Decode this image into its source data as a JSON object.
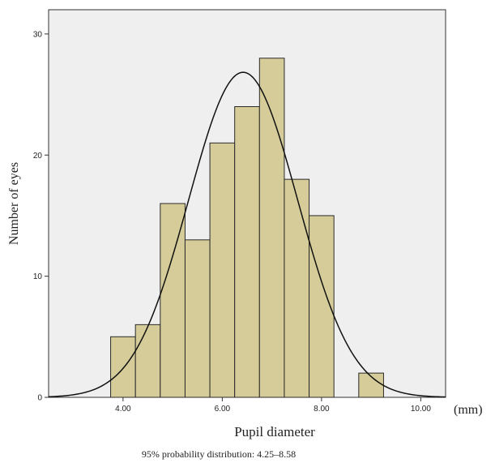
{
  "chart_data": {
    "type": "bar",
    "xlabel": "Pupil diameter",
    "x_unit": "(mm)",
    "ylabel": "Number of eyes",
    "note": "95% probability distribution: 4.25–8.58",
    "xlim": [
      2.5,
      10.5
    ],
    "ylim": [
      0,
      32
    ],
    "x_ticks": [
      4.0,
      6.0,
      8.0,
      10.0
    ],
    "x_tick_labels": [
      "4.00",
      "6.00",
      "8.00",
      "10.00"
    ],
    "y_ticks": [
      0,
      10,
      20,
      30
    ],
    "y_tick_labels": [
      "0",
      "10",
      "20",
      "30"
    ],
    "bin_width": 0.5,
    "bins": [
      {
        "start": 3.75,
        "end": 4.25,
        "count": 5
      },
      {
        "start": 4.25,
        "end": 4.75,
        "count": 6
      },
      {
        "start": 4.75,
        "end": 5.25,
        "count": 16
      },
      {
        "start": 5.25,
        "end": 5.75,
        "count": 13
      },
      {
        "start": 5.75,
        "end": 6.25,
        "count": 21
      },
      {
        "start": 6.25,
        "end": 6.75,
        "count": 24
      },
      {
        "start": 6.75,
        "end": 7.25,
        "count": 28
      },
      {
        "start": 7.25,
        "end": 7.75,
        "count": 18
      },
      {
        "start": 7.75,
        "end": 8.25,
        "count": 15
      },
      {
        "start": 8.75,
        "end": 9.25,
        "count": 2
      }
    ],
    "normal_curve": {
      "mean": 6.42,
      "sd": 1.1,
      "n": 148
    },
    "grid": false,
    "legend": "none",
    "colors": {
      "bar_fill": "#d6cc99",
      "bar_stroke": "#2a2a2a",
      "plot_bg": "#efefef",
      "curve": "#111111"
    }
  }
}
